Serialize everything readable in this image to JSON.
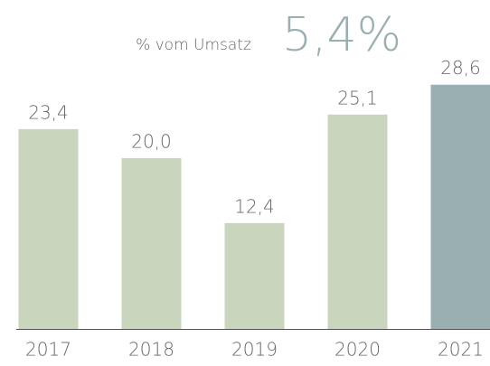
{
  "chart_data": {
    "type": "bar",
    "annotation": "% vom Umsatz",
    "highlight": "5,4%",
    "categories": [
      "2017",
      "2018",
      "2019",
      "2020",
      "2021"
    ],
    "values": [
      23.4,
      20.0,
      12.4,
      25.1,
      28.6
    ],
    "value_labels": [
      "23,4",
      "20,0",
      "12,4",
      "25,1",
      "28,6"
    ],
    "colors": [
      "#c9d6bd",
      "#c9d6bd",
      "#c9d6bd",
      "#c9d6bd",
      "#9aafb1"
    ],
    "highlight_color": "#9aafb1"
  }
}
